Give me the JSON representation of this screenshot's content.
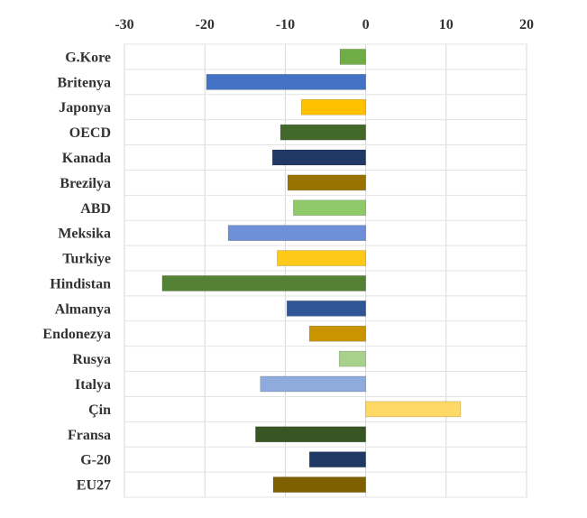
{
  "chart_data": {
    "type": "bar",
    "orientation": "horizontal",
    "title": "",
    "xlabel": "",
    "ylabel": "",
    "xlim": [
      -30,
      20
    ],
    "x_ticks": [
      -30,
      -20,
      -10,
      0,
      10,
      20
    ],
    "x_tick_labels": [
      "-30",
      "-20",
      "-10",
      "0",
      "10",
      "20"
    ],
    "x_axis_position": "top",
    "grid": true,
    "legend": "none",
    "categories": [
      "G.Kore",
      "Britenya",
      "Japonya",
      "OECD",
      "Kanada",
      "Brezilya",
      "ABD",
      "Meksika",
      "Turkiye",
      "Hindistan",
      "Almanya",
      "Endonezya",
      "Rusya",
      "Italya",
      "Çin",
      "Fransa",
      "G-20",
      "EU27"
    ],
    "values": [
      -3.2,
      -19.8,
      -8.0,
      -10.6,
      -11.6,
      -9.7,
      -9.0,
      -17.1,
      -11.0,
      -25.3,
      -9.8,
      -7.0,
      -3.3,
      -13.1,
      11.8,
      -13.7,
      -7.0,
      -11.5
    ],
    "colors": [
      "#70ad47",
      "#4472c4",
      "#ffc000",
      "#43682b",
      "#203864",
      "#997300",
      "#8fc96a",
      "#6f8fd8",
      "#ffc91a",
      "#548235",
      "#2f5597",
      "#c99400",
      "#a9d18e",
      "#8faadc",
      "#ffd966",
      "#375623",
      "#1f3864",
      "#7f6000"
    ]
  }
}
